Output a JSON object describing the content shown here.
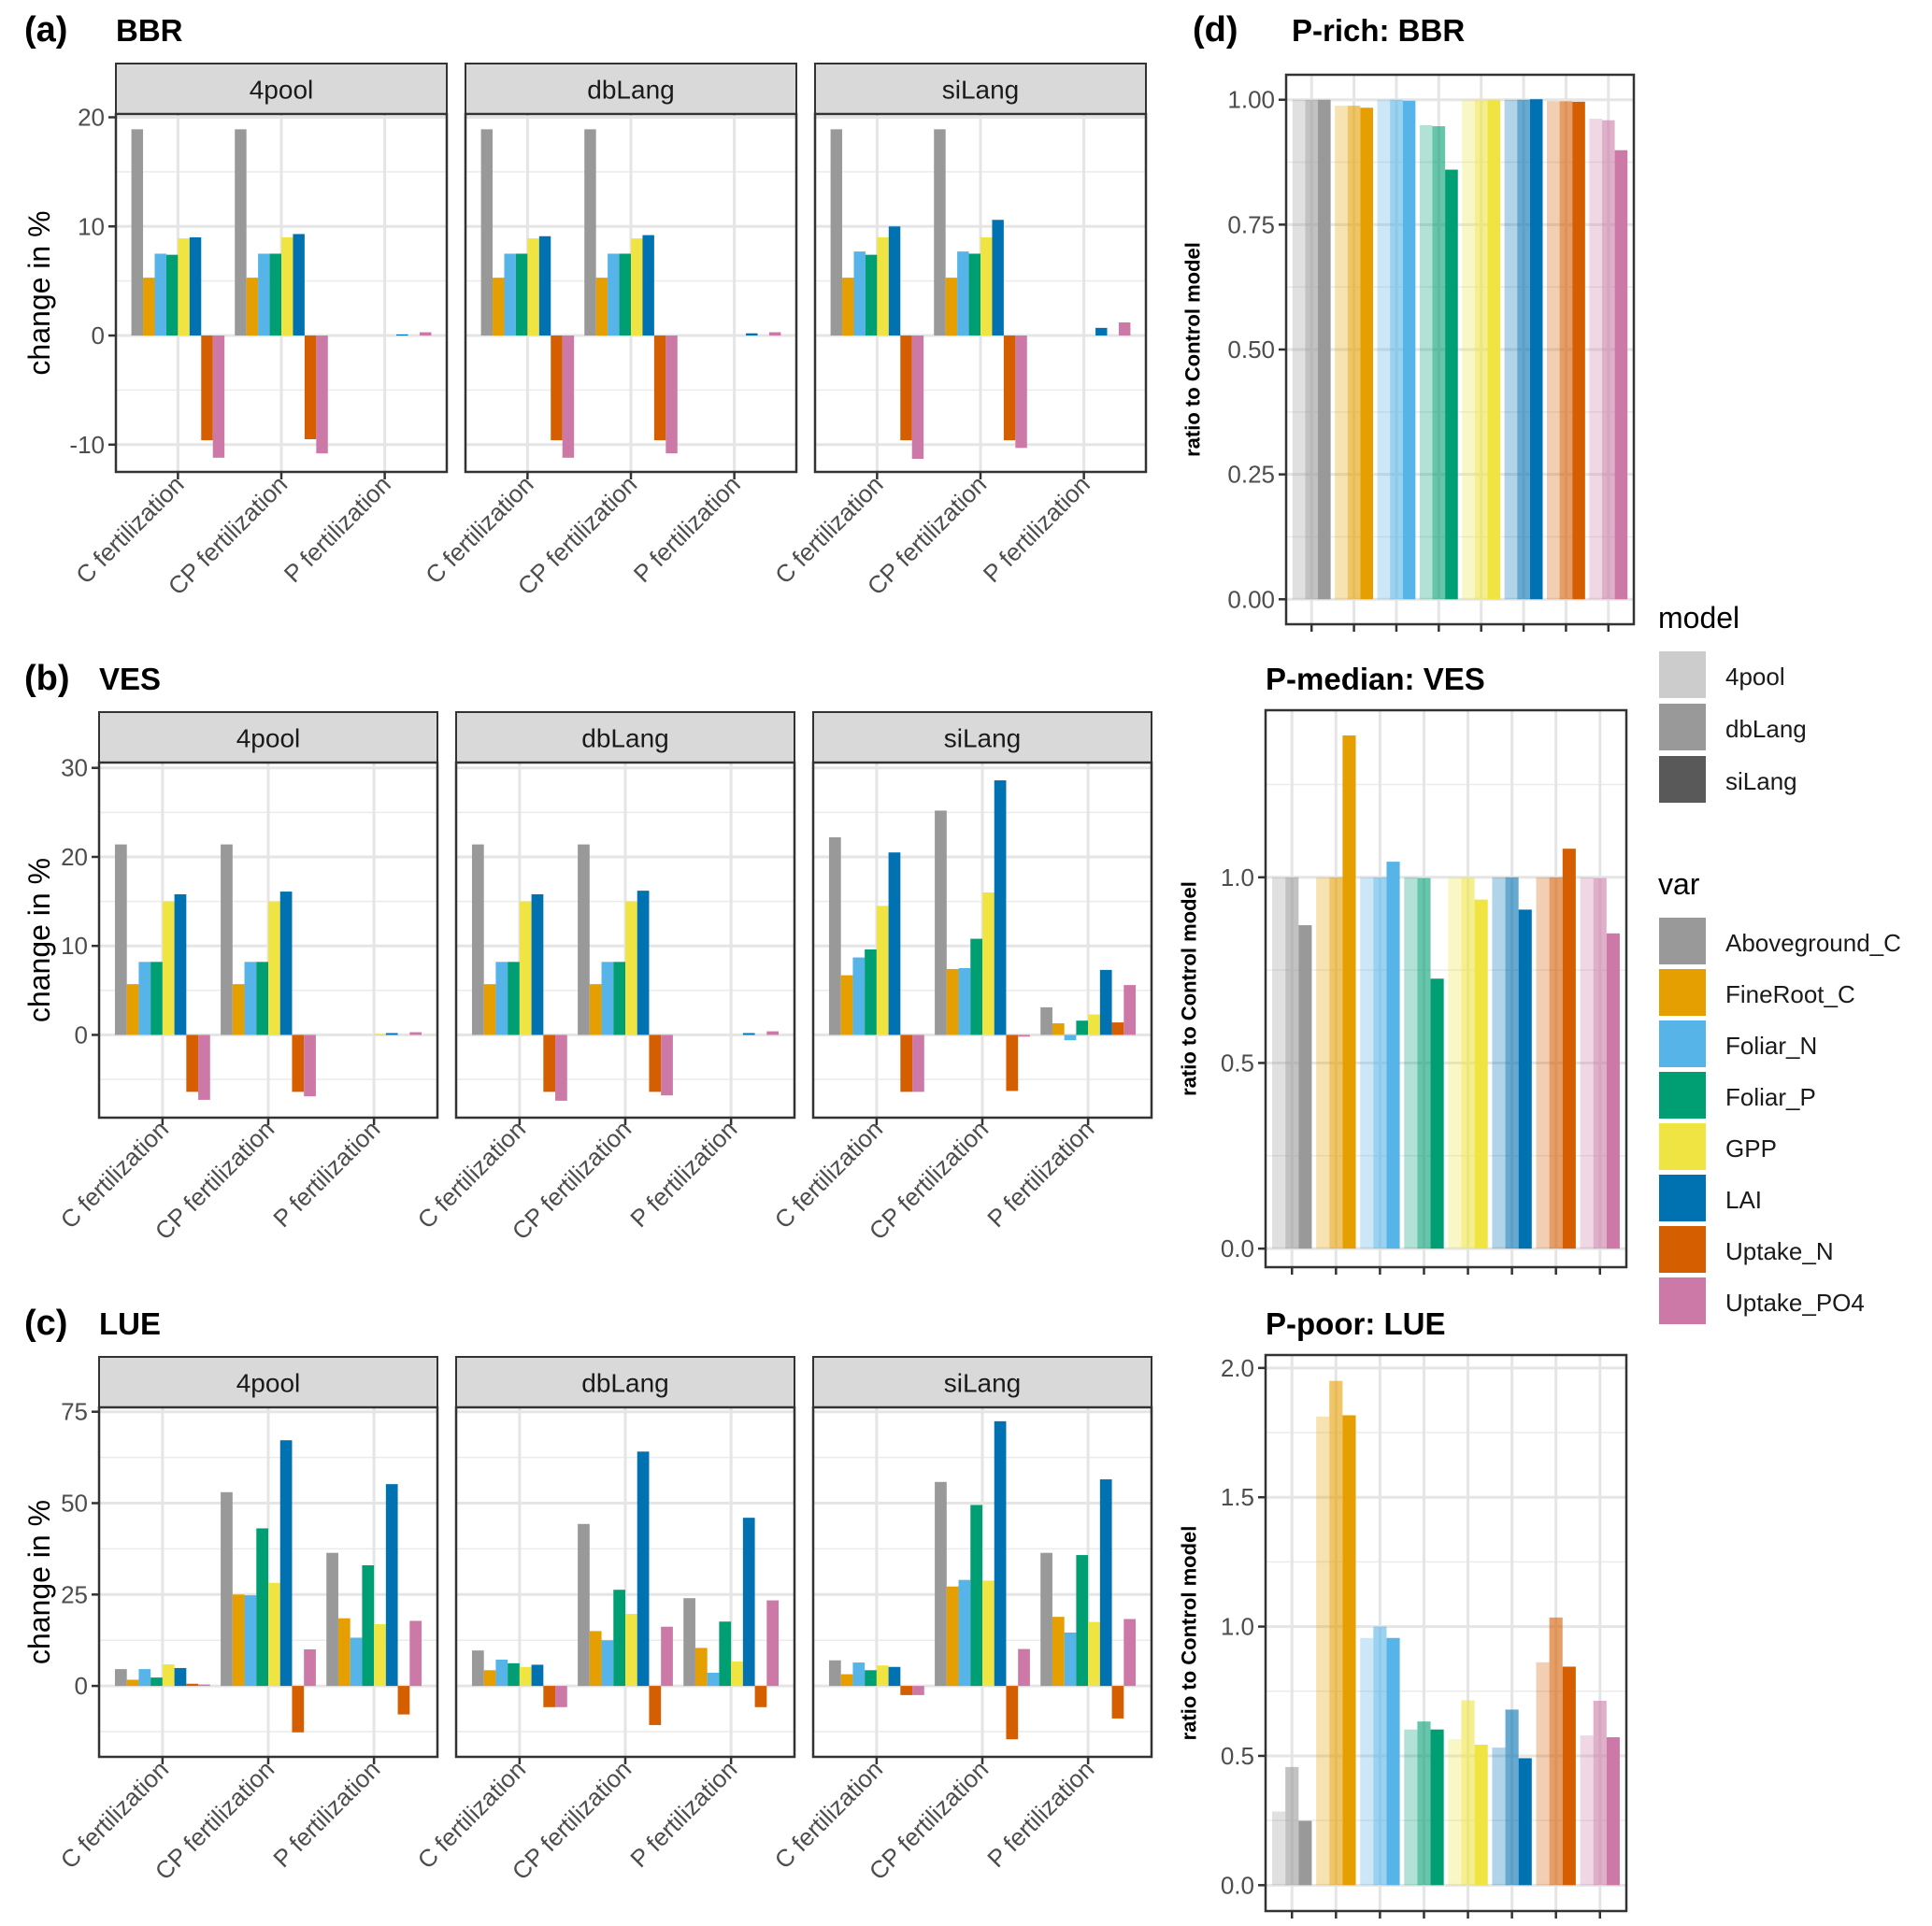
{
  "chart_data": {
    "type": "bar",
    "variables": [
      "Aboveground_C",
      "FineRoot_C",
      "Foliar_N",
      "Foliar_P",
      "GPP",
      "LAI",
      "Uptake_N",
      "Uptake_PO4"
    ],
    "colors": {
      "Aboveground_C": "#999999",
      "FineRoot_C": "#E69F00",
      "Foliar_N": "#56B4E9",
      "Foliar_P": "#009E73",
      "GPP": "#F0E442",
      "LAI": "#0072B2",
      "Uptake_N": "#D55E00",
      "Uptake_PO4": "#CC79A7"
    },
    "models": [
      "4pool",
      "dbLang",
      "siLang"
    ],
    "model_alpha": {
      "4pool": 0.3,
      "dbLang": 0.6,
      "siLang": 1.0
    },
    "categories": [
      "C fertilization",
      "CP fertilization",
      "P fertilization"
    ],
    "left_panels": [
      {
        "tag": "(a)",
        "title": "BBR",
        "ylabel": "change in %",
        "ylim": [
          -12.5,
          20.3
        ],
        "yticks": [
          -10,
          0,
          10,
          20
        ],
        "yticks_minor": [
          -5,
          5,
          15
        ],
        "facets": [
          {
            "model": "4pool",
            "series": {
              "C fertilization": [
                18.9,
                5.3,
                7.5,
                7.4,
                8.9,
                9.0,
                -9.6,
                -11.2
              ],
              "CP fertilization": [
                18.9,
                5.3,
                7.5,
                7.5,
                9.0,
                9.3,
                -9.5,
                -10.8
              ],
              "P fertilization": [
                0,
                0,
                0,
                0,
                0,
                0.1,
                0,
                0.3
              ]
            }
          },
          {
            "model": "dbLang",
            "series": {
              "C fertilization": [
                18.9,
                5.3,
                7.5,
                7.5,
                8.9,
                9.1,
                -9.6,
                -11.2
              ],
              "CP fertilization": [
                18.9,
                5.3,
                7.5,
                7.5,
                8.9,
                9.2,
                -9.6,
                -10.8
              ],
              "P fertilization": [
                0,
                0,
                0,
                0,
                0,
                0.2,
                0,
                0.3
              ]
            }
          },
          {
            "model": "siLang",
            "series": {
              "C fertilization": [
                18.9,
                5.3,
                7.7,
                7.4,
                9.0,
                10.0,
                -9.6,
                -11.3
              ],
              "CP fertilization": [
                18.9,
                5.3,
                7.7,
                7.5,
                9.0,
                10.6,
                -9.6,
                -10.3
              ],
              "P fertilization": [
                0,
                0,
                0,
                0,
                0,
                0.7,
                0,
                1.2
              ]
            }
          }
        ]
      },
      {
        "tag": "(b)",
        "title": "VES",
        "ylabel": "change in %",
        "ylim": [
          -9.3,
          30.6
        ],
        "yticks": [
          0,
          10,
          20,
          30
        ],
        "yticks_minor": [
          -5,
          5,
          15,
          25
        ],
        "facets": [
          {
            "model": "4pool",
            "series": {
              "C fertilization": [
                21.4,
                5.7,
                8.2,
                8.2,
                15.0,
                15.8,
                -6.4,
                -7.3
              ],
              "CP fertilization": [
                21.4,
                5.7,
                8.2,
                8.2,
                15.0,
                16.1,
                -6.4,
                -6.9
              ],
              "P fertilization": [
                0,
                0,
                0,
                0,
                0.1,
                0.2,
                0,
                0.3
              ]
            }
          },
          {
            "model": "dbLang",
            "series": {
              "C fertilization": [
                21.4,
                5.7,
                8.2,
                8.2,
                15.0,
                15.8,
                -6.4,
                -7.4
              ],
              "CP fertilization": [
                21.4,
                5.7,
                8.2,
                8.2,
                15.0,
                16.2,
                -6.4,
                -6.8
              ],
              "P fertilization": [
                0,
                0,
                0,
                0,
                0,
                0.2,
                0,
                0.4
              ]
            }
          },
          {
            "model": "siLang",
            "series": {
              "C fertilization": [
                22.2,
                6.7,
                8.7,
                9.6,
                14.5,
                20.5,
                -6.4,
                -6.4
              ],
              "CP fertilization": [
                25.2,
                7.4,
                7.5,
                10.8,
                16.0,
                28.6,
                -6.3,
                -0.2
              ],
              "P fertilization": [
                3.1,
                1.3,
                -0.6,
                1.6,
                2.3,
                7.3,
                1.4,
                5.6
              ]
            }
          }
        ]
      },
      {
        "tag": "(c)",
        "title": "LUE",
        "ylabel": "change in %",
        "ylim": [
          -19.4,
          76.2
        ],
        "yticks": [
          0,
          25,
          50,
          75
        ],
        "yticks_minor": [
          -12.5,
          12.5,
          37.5,
          62.5
        ],
        "facets": [
          {
            "model": "4pool",
            "series": {
              "C fertilization": [
                4.6,
                1.7,
                4.6,
                2.3,
                5.9,
                4.9,
                0.6,
                0.4
              ],
              "CP fertilization": [
                53.0,
                25.0,
                24.8,
                43.1,
                28.2,
                67.2,
                -12.7,
                10.0
              ],
              "P fertilization": [
                36.4,
                18.5,
                13.2,
                33.0,
                16.9,
                55.2,
                -7.8,
                17.8
              ]
            }
          },
          {
            "model": "dbLang",
            "series": {
              "C fertilization": [
                9.7,
                4.3,
                7.2,
                6.2,
                5.2,
                5.8,
                -5.8,
                -5.8
              ],
              "CP fertilization": [
                44.3,
                15.0,
                12.5,
                26.3,
                19.7,
                64.1,
                -10.7,
                16.2
              ],
              "P fertilization": [
                24.0,
                10.4,
                3.6,
                17.6,
                6.7,
                46.0,
                -5.8,
                23.4
              ]
            }
          },
          {
            "model": "siLang",
            "series": {
              "C fertilization": [
                7.0,
                3.2,
                6.4,
                4.3,
                5.6,
                5.2,
                -2.5,
                -2.5
              ],
              "CP fertilization": [
                55.8,
                27.2,
                29.0,
                49.5,
                28.8,
                72.4,
                -14.6,
                10.1
              ],
              "P fertilization": [
                36.4,
                18.9,
                14.6,
                35.8,
                17.5,
                56.5,
                -8.9,
                18.3
              ]
            }
          }
        ]
      }
    ],
    "right_panels": [
      {
        "tag": "(d)",
        "title": "P-rich: BBR",
        "ylabel": "ratio to Control model",
        "ylim": [
          -0.05,
          1.05
        ],
        "yticks": [
          0.0,
          0.25,
          0.5,
          0.75,
          1.0
        ],
        "yticklabels": [
          "0.00",
          "0.25",
          "0.50",
          "0.75",
          "1.00"
        ],
        "yticks_minor": [
          0.125,
          0.375,
          0.625,
          0.875
        ],
        "values": {
          "Aboveground_C": [
            1.0,
            1.0,
            1.0
          ],
          "FineRoot_C": [
            0.988,
            0.988,
            0.984
          ],
          "Foliar_N": [
            1.0,
            1.0,
            0.998
          ],
          "Foliar_P": [
            0.949,
            0.947,
            0.86
          ],
          "GPP": [
            1.0,
            1.0,
            1.0
          ],
          "LAI": [
            1.0,
            1.0,
            1.001
          ],
          "Uptake_N": [
            0.997,
            0.997,
            0.996
          ],
          "Uptake_PO4": [
            0.962,
            0.959,
            0.899
          ]
        }
      },
      {
        "tag": "",
        "title": "P-median: VES",
        "ylabel": "ratio to Control model",
        "ylim": [
          -0.05,
          1.45
        ],
        "yticks": [
          0.0,
          0.5,
          1.0
        ],
        "yticklabels": [
          "0.0",
          "0.5",
          "1.0"
        ],
        "yticks_minor": [
          0.25,
          0.75,
          1.25
        ],
        "values": {
          "Aboveground_C": [
            1.0,
            1.0,
            0.871
          ],
          "FineRoot_C": [
            1.0,
            1.0,
            1.382
          ],
          "Foliar_N": [
            1.0,
            1.0,
            1.042
          ],
          "Foliar_P": [
            1.0,
            0.998,
            0.727
          ],
          "GPP": [
            1.0,
            1.0,
            0.94
          ],
          "LAI": [
            1.0,
            1.0,
            0.913
          ],
          "Uptake_N": [
            1.0,
            1.0,
            1.077
          ],
          "Uptake_PO4": [
            1.0,
            0.998,
            0.849
          ]
        }
      },
      {
        "tag": "",
        "title": "P-poor: LUE",
        "ylabel": "ratio to Control model",
        "ylim": [
          -0.1,
          2.05
        ],
        "yticks": [
          0.0,
          0.5,
          1.0,
          1.5,
          2.0
        ],
        "yticklabels": [
          "0.0",
          "0.5",
          "1.0",
          "1.5",
          "2.0"
        ],
        "yticks_minor": [
          0.25,
          0.75,
          1.25,
          1.75
        ],
        "values": {
          "Aboveground_C": [
            0.285,
            0.457,
            0.249
          ],
          "FineRoot_C": [
            1.812,
            1.95,
            1.817
          ],
          "Foliar_N": [
            0.956,
            1.0,
            0.956
          ],
          "Foliar_P": [
            0.602,
            0.633,
            0.602
          ],
          "GPP": [
            0.565,
            0.715,
            0.543
          ],
          "LAI": [
            0.532,
            0.679,
            0.491
          ],
          "Uptake_N": [
            0.862,
            1.035,
            0.845
          ],
          "Uptake_PO4": [
            0.579,
            0.713,
            0.572
          ]
        }
      }
    ],
    "legend": {
      "model_title": "model",
      "model_items": [
        {
          "label": "4pool",
          "color": "#cccccc"
        },
        {
          "label": "dbLang",
          "color": "#999999"
        },
        {
          "label": "siLang",
          "color": "#595959"
        }
      ],
      "var_title": "var",
      "var_items": [
        {
          "label": "Aboveground_C",
          "color": "#999999"
        },
        {
          "label": "FineRoot_C",
          "color": "#E69F00"
        },
        {
          "label": "Foliar_N",
          "color": "#56B4E9"
        },
        {
          "label": "Foliar_P",
          "color": "#009E73"
        },
        {
          "label": "GPP",
          "color": "#F0E442"
        },
        {
          "label": "LAI",
          "color": "#0072B2"
        },
        {
          "label": "Uptake_N",
          "color": "#D55E00"
        },
        {
          "label": "Uptake_PO4",
          "color": "#CC79A7"
        }
      ]
    }
  }
}
